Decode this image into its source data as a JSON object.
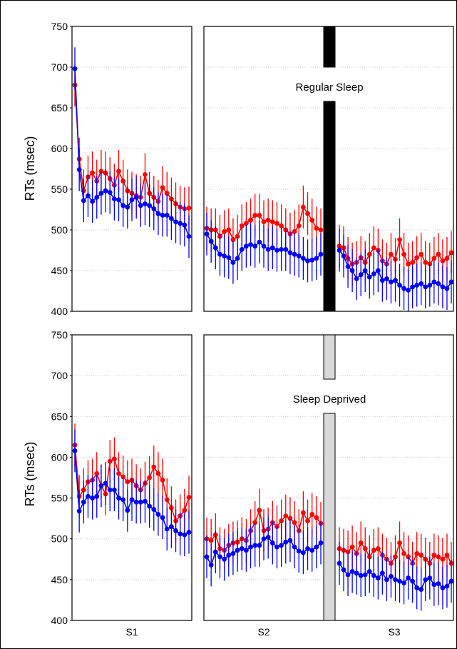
{
  "chart_data": [
    {
      "type": "line",
      "title": "",
      "annotation": "Regular Sleep",
      "ylabel": "RTs (msec)",
      "xlabel": "",
      "ylim": [
        400,
        750
      ],
      "yticks": [
        400,
        450,
        500,
        550,
        600,
        650,
        700,
        750
      ],
      "sessions": [
        "S1",
        "S2",
        "S3"
      ],
      "sleep_bar_color": "#000000",
      "grid": "horizontal dotted",
      "error_bars": true,
      "series": [
        {
          "color": "#ff0000",
          "S1": [
            678,
            587,
            548,
            565,
            570,
            560,
            572,
            570,
            563,
            555,
            572,
            560,
            548,
            545,
            542,
            540,
            568,
            545,
            540,
            535,
            552,
            545,
            538,
            532,
            528,
            526,
            527
          ],
          "S2": [
            502,
            500,
            500,
            492,
            498,
            500,
            488,
            492,
            505,
            508,
            512,
            518,
            518,
            510,
            512,
            510,
            508,
            505,
            500,
            495,
            498,
            505,
            528,
            520,
            512,
            502,
            500
          ],
          "S3": [
            480,
            478,
            465,
            458,
            460,
            466,
            460,
            470,
            478,
            475,
            462,
            458,
            470,
            464,
            488,
            470,
            458,
            460,
            466,
            470,
            460,
            458,
            465,
            470,
            462,
            465,
            472
          ]
        },
        {
          "color": "#0000ff",
          "S1": [
            698,
            574,
            536,
            542,
            535,
            540,
            545,
            548,
            546,
            538,
            537,
            530,
            528,
            537,
            540,
            530,
            532,
            530,
            526,
            520,
            518,
            518,
            514,
            510,
            508,
            506,
            492
          ],
          "S2": [
            495,
            486,
            478,
            470,
            468,
            466,
            460,
            465,
            476,
            480,
            482,
            480,
            485,
            480,
            476,
            478,
            475,
            476,
            476,
            472,
            470,
            468,
            465,
            462,
            463,
            465,
            470
          ],
          "S3": [
            475,
            468,
            455,
            450,
            440,
            445,
            450,
            442,
            446,
            450,
            438,
            440,
            436,
            438,
            432,
            428,
            426,
            430,
            432,
            434,
            430,
            432,
            436,
            434,
            430,
            428,
            436
          ]
        }
      ]
    },
    {
      "type": "line",
      "title": "",
      "annotation": "Sleep Deprived",
      "ylabel": "RTs (msec)",
      "xlabel": "",
      "ylim": [
        400,
        750
      ],
      "yticks": [
        400,
        450,
        500,
        550,
        600,
        650,
        700,
        750
      ],
      "sessions": [
        "S1",
        "S2",
        "S3"
      ],
      "sleep_bar_color": "#d9d9d9",
      "grid": "horizontal dotted",
      "error_bars": true,
      "series": [
        {
          "color": "#ff0000",
          "S1": [
            615,
            552,
            560,
            570,
            572,
            580,
            565,
            555,
            595,
            598,
            580,
            576,
            570,
            572,
            565,
            560,
            568,
            575,
            588,
            580,
            572,
            548,
            538,
            522,
            528,
            535,
            551
          ],
          "S2": [
            500,
            498,
            505,
            488,
            486,
            492,
            495,
            496,
            500,
            498,
            510,
            520,
            535,
            510,
            512,
            520,
            515,
            522,
            528,
            525,
            520,
            510,
            532,
            522,
            530,
            526,
            519
          ],
          "S3": [
            488,
            486,
            484,
            490,
            482,
            495,
            488,
            478,
            486,
            488,
            480,
            475,
            470,
            478,
            495,
            482,
            478,
            470,
            482,
            480,
            475,
            470,
            480,
            478,
            475,
            480,
            470
          ]
        },
        {
          "color": "#0000ff",
          "S1": [
            608,
            534,
            545,
            552,
            550,
            552,
            565,
            568,
            560,
            560,
            550,
            548,
            535,
            548,
            545,
            545,
            546,
            540,
            536,
            530,
            526,
            512,
            515,
            510,
            506,
            505,
            508
          ],
          "S2": [
            478,
            468,
            484,
            478,
            475,
            480,
            482,
            486,
            488,
            486,
            490,
            492,
            492,
            500,
            502,
            495,
            490,
            492,
            496,
            498,
            490,
            485,
            483,
            488,
            486,
            490,
            495
          ],
          "S3": [
            470,
            462,
            456,
            460,
            458,
            455,
            456,
            460,
            455,
            452,
            458,
            450,
            454,
            450,
            448,
            446,
            452,
            448,
            440,
            438,
            450,
            452,
            444,
            445,
            440,
            442,
            448
          ]
        }
      ]
    }
  ]
}
